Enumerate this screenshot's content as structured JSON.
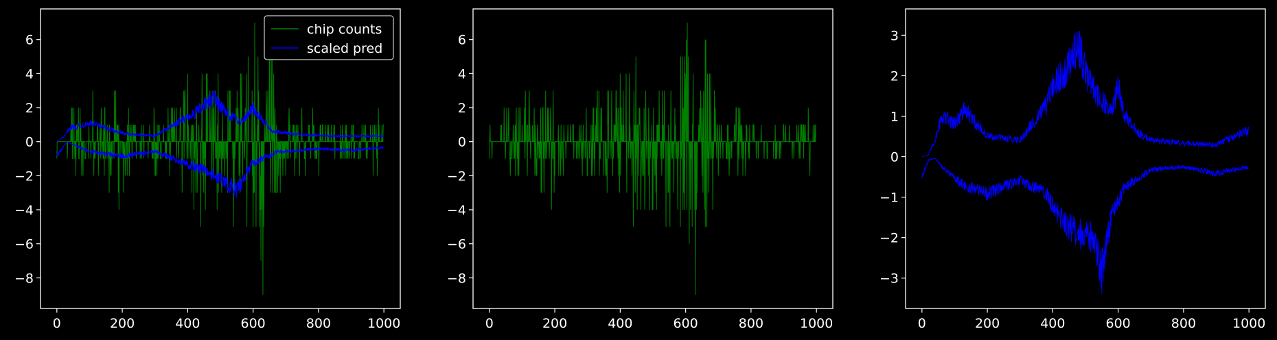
{
  "chart_data": [
    {
      "type": "line",
      "x_range": [
        0,
        999
      ],
      "xlim": [
        -50,
        1050
      ],
      "ylim": [
        -9.8,
        7.8
      ],
      "xticks": [
        0,
        200,
        400,
        600,
        800,
        1000
      ],
      "yticks": [
        -8,
        -6,
        -4,
        -2,
        0,
        2,
        4,
        6
      ],
      "grid": false,
      "legend": "top-right",
      "background": "#000000",
      "series": [
        {
          "name": "chip counts",
          "color": "#008000",
          "kind": "integer-counts",
          "points": [
            [
              0,
              -1
            ],
            [
              20,
              0
            ],
            [
              45,
              2
            ],
            [
              80,
              -2
            ],
            [
              110,
              3
            ],
            [
              145,
              -2
            ],
            [
              160,
              -3
            ],
            [
              190,
              -4
            ],
            [
              240,
              1
            ],
            [
              300,
              -2
            ],
            [
              400,
              4
            ],
            [
              440,
              -5
            ],
            [
              490,
              -4
            ],
            [
              540,
              -5
            ],
            [
              585,
              5
            ],
            [
              605,
              7
            ],
            [
              620,
              -5
            ],
            [
              630,
              -9
            ],
            [
              700,
              -2
            ],
            [
              760,
              -2
            ],
            [
              850,
              -1
            ],
            [
              900,
              1
            ],
            [
              980,
              -2
            ],
            [
              999,
              1
            ]
          ]
        },
        {
          "name": "scaled pred",
          "color": "#0000ff",
          "kind": "envelope",
          "upper": [
            [
              0,
              0
            ],
            [
              25,
              0.4
            ],
            [
              40,
              1.0
            ],
            [
              100,
              1.3
            ],
            [
              200,
              0.6
            ],
            [
              300,
              0.4
            ],
            [
              380,
              1.5
            ],
            [
              420,
              2.0
            ],
            [
              480,
              3.1
            ],
            [
              520,
              2.0
            ],
            [
              560,
              1.4
            ],
            [
              600,
              2.4
            ],
            [
              660,
              0.7
            ],
            [
              750,
              0.5
            ],
            [
              850,
              0.4
            ],
            [
              999,
              0.4
            ]
          ],
          "lower": [
            [
              0,
              -1.0
            ],
            [
              30,
              0
            ],
            [
              50,
              -0.2
            ],
            [
              100,
              -0.7
            ],
            [
              200,
              -1.0
            ],
            [
              300,
              -0.7
            ],
            [
              400,
              -1.6
            ],
            [
              450,
              -2.0
            ],
            [
              500,
              -2.6
            ],
            [
              550,
              -3.4
            ],
            [
              600,
              -1.5
            ],
            [
              680,
              -0.7
            ],
            [
              800,
              -0.5
            ],
            [
              900,
              -0.6
            ],
            [
              999,
              -0.4
            ]
          ]
        }
      ]
    },
    {
      "type": "line",
      "x_range": [
        0,
        999
      ],
      "xlim": [
        -50,
        1050
      ],
      "ylim": [
        -9.8,
        7.8
      ],
      "xticks": [
        0,
        200,
        400,
        600,
        800,
        1000
      ],
      "yticks": [
        -8,
        -6,
        -4,
        -2,
        0,
        2,
        4,
        6
      ],
      "grid": false,
      "series": [
        {
          "color": "#008000",
          "kind": "integer-counts",
          "points": [
            [
              0,
              -1
            ],
            [
              20,
              0
            ],
            [
              45,
              2
            ],
            [
              80,
              -2
            ],
            [
              110,
              3
            ],
            [
              145,
              -2
            ],
            [
              160,
              -3
            ],
            [
              190,
              -4
            ],
            [
              240,
              1
            ],
            [
              300,
              -2
            ],
            [
              400,
              4
            ],
            [
              440,
              -5
            ],
            [
              490,
              -4
            ],
            [
              540,
              -5
            ],
            [
              585,
              5
            ],
            [
              605,
              7
            ],
            [
              620,
              -5
            ],
            [
              630,
              -9
            ],
            [
              700,
              -2
            ],
            [
              760,
              -2
            ],
            [
              850,
              -1
            ],
            [
              900,
              1
            ],
            [
              980,
              -2
            ],
            [
              999,
              1
            ]
          ]
        }
      ]
    },
    {
      "type": "line",
      "x_range": [
        0,
        999
      ],
      "xlim": [
        -50,
        1050
      ],
      "ylim": [
        -3.75,
        3.65
      ],
      "xticks": [
        0,
        200,
        400,
        600,
        800,
        1000
      ],
      "yticks": [
        -3,
        -2,
        -1,
        0,
        1,
        2,
        3
      ],
      "grid": false,
      "series": [
        {
          "color": "#0000ff",
          "kind": "envelope",
          "upper": [
            [
              0,
              0
            ],
            [
              20,
              0.05
            ],
            [
              40,
              0.5
            ],
            [
              60,
              1.2
            ],
            [
              100,
              1.0
            ],
            [
              130,
              1.4
            ],
            [
              200,
              0.6
            ],
            [
              300,
              0.5
            ],
            [
              380,
              1.5
            ],
            [
              400,
              2.1
            ],
            [
              440,
              2.6
            ],
            [
              480,
              3.3
            ],
            [
              500,
              2.5
            ],
            [
              540,
              1.8
            ],
            [
              580,
              1.3
            ],
            [
              600,
              2.1
            ],
            [
              620,
              1.2
            ],
            [
              660,
              0.7
            ],
            [
              700,
              0.5
            ],
            [
              800,
              0.4
            ],
            [
              900,
              0.35
            ],
            [
              999,
              0.8
            ]
          ],
          "lower": [
            [
              0,
              -0.6
            ],
            [
              20,
              -0.1
            ],
            [
              40,
              -0.05
            ],
            [
              70,
              -0.4
            ],
            [
              120,
              -0.8
            ],
            [
              200,
              -1.1
            ],
            [
              300,
              -0.7
            ],
            [
              380,
              -1.1
            ],
            [
              420,
              -1.8
            ],
            [
              480,
              -2.3
            ],
            [
              520,
              -2.4
            ],
            [
              550,
              -3.4
            ],
            [
              580,
              -1.8
            ],
            [
              620,
              -0.9
            ],
            [
              700,
              -0.4
            ],
            [
              800,
              -0.3
            ],
            [
              900,
              -0.5
            ],
            [
              999,
              -0.3
            ]
          ]
        }
      ]
    }
  ]
}
